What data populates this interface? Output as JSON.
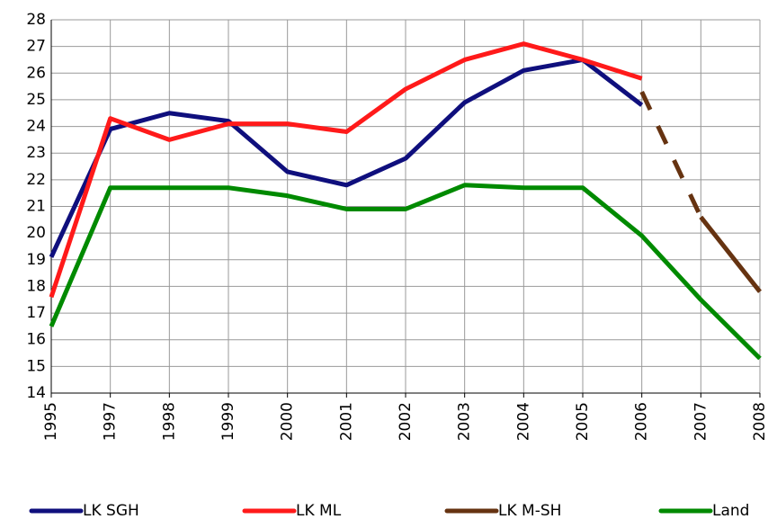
{
  "chart_data": {
    "type": "line",
    "categories": [
      "1995",
      "1997",
      "1998",
      "1999",
      "2000",
      "2001",
      "2002",
      "2003",
      "2004",
      "2005",
      "2006",
      "2007",
      "2008"
    ],
    "series": [
      {
        "name": "LK SGH",
        "color": "#0f0f7d",
        "values": [
          19.1,
          23.9,
          24.5,
          24.2,
          22.3,
          21.8,
          22.8,
          24.9,
          26.1,
          26.5,
          24.8,
          null,
          null
        ]
      },
      {
        "name": "LK ML",
        "color": "#ff1a1a",
        "values": [
          17.6,
          24.3,
          23.5,
          24.1,
          24.1,
          23.8,
          25.4,
          26.5,
          27.1,
          26.5,
          25.8,
          null,
          null
        ]
      },
      {
        "name": "LK M-SH",
        "color": "#663311",
        "values": [
          null,
          null,
          null,
          null,
          null,
          null,
          null,
          null,
          null,
          null,
          25.3,
          20.6,
          17.8
        ],
        "dashed_until": "2007"
      },
      {
        "name": "Land",
        "color": "#008a00",
        "values": [
          16.5,
          21.7,
          21.7,
          21.7,
          21.4,
          20.9,
          20.9,
          21.8,
          21.7,
          21.7,
          19.9,
          17.5,
          15.3
        ]
      }
    ],
    "ylim": [
      14,
      28
    ],
    "yticks": [
      14,
      15,
      16,
      17,
      18,
      19,
      20,
      21,
      22,
      23,
      24,
      25,
      26,
      27,
      28
    ],
    "grid": true,
    "legend": "bottom"
  }
}
